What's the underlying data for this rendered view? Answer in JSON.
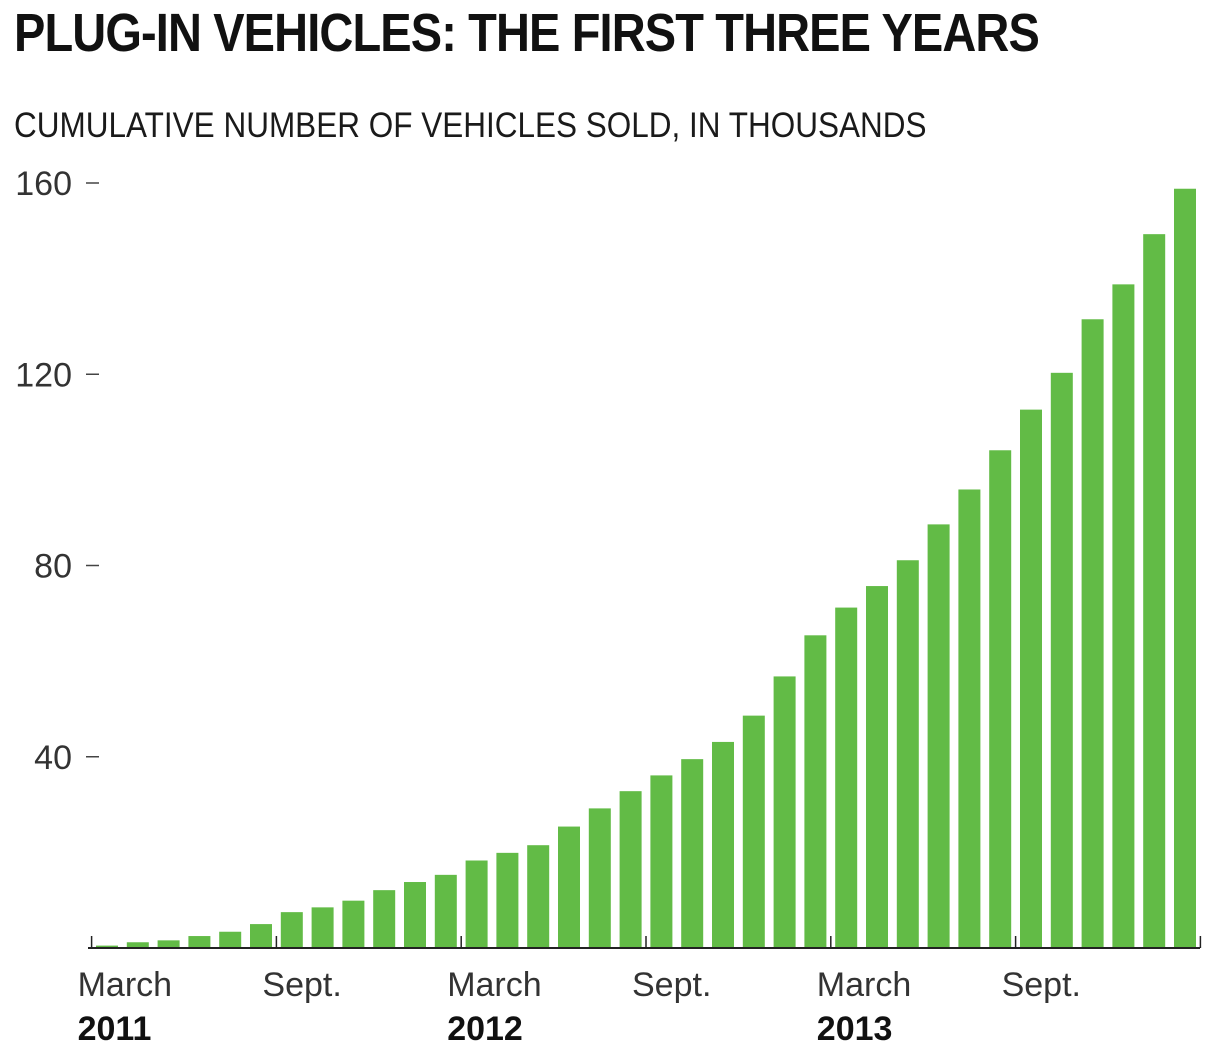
{
  "chart_data": {
    "type": "bar",
    "title": "PLUG-IN VEHICLES: THE FIRST THREE YEARS",
    "subtitle": "CUMULATIVE NUMBER OF VEHICLES SOLD, IN THOUSANDS",
    "xlabel": "",
    "ylabel": "",
    "ylim": [
      0,
      160
    ],
    "yticks": [
      40,
      80,
      120,
      160
    ],
    "grid": false,
    "bar_color": "#62bb46",
    "axis_color": "#222222",
    "x_tick_labels": [
      {
        "month": "March",
        "year": "2011",
        "index": 0
      },
      {
        "month": "Sept.",
        "year": "",
        "index": 6
      },
      {
        "month": "March",
        "year": "2012",
        "index": 12
      },
      {
        "month": "Sept.",
        "year": "",
        "index": 18
      },
      {
        "month": "March",
        "year": "2013",
        "index": 24
      },
      {
        "month": "Sept.",
        "year": "",
        "index": 30
      }
    ],
    "series": [
      {
        "name": "Cumulative plug-in vehicles sold (thousands)",
        "values": [
          0.5,
          1.2,
          1.6,
          2.5,
          3.4,
          5.0,
          7.5,
          8.5,
          9.9,
          12.1,
          13.8,
          15.3,
          18.3,
          19.9,
          21.5,
          25.4,
          29.2,
          32.8,
          36.1,
          39.5,
          43.1,
          48.6,
          56.8,
          65.4,
          71.2,
          75.7,
          81.1,
          88.6,
          95.9,
          104.1,
          112.6,
          120.3,
          131.5,
          138.8,
          149.3,
          158.8
        ]
      }
    ]
  }
}
